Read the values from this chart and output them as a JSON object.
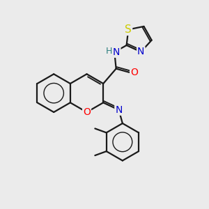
{
  "bg_color": "#ebebeb",
  "bond_color": "#1a1a1a",
  "bond_width": 1.6,
  "atom_colors": {
    "O": "#ff0000",
    "N": "#0000cc",
    "S": "#cccc00",
    "H": "#2f8080",
    "C": "#1a1a1a"
  },
  "font_size": 9.5
}
